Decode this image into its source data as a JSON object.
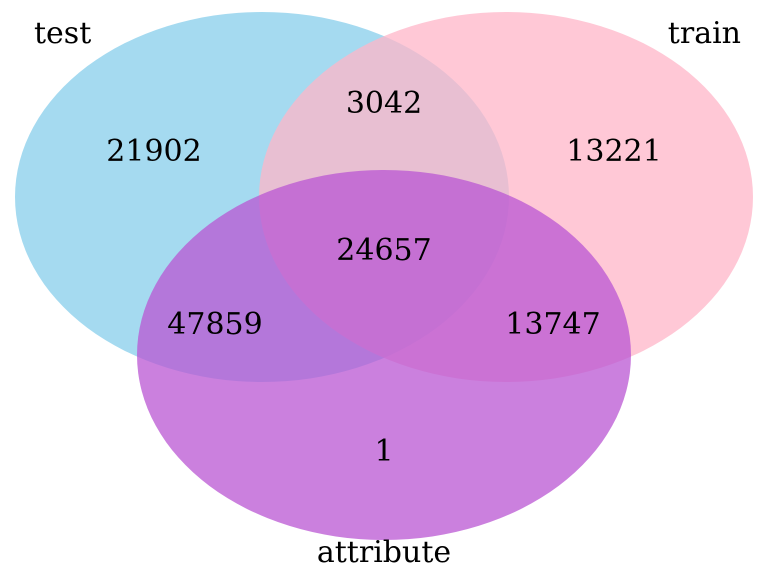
{
  "sets": {
    "test": {
      "label": "test",
      "color": "#87CEEB"
    },
    "train": {
      "label": "train",
      "color": "#FFB6C8"
    },
    "attribute": {
      "label": "attribute",
      "color": "#BA55D3"
    }
  },
  "regions": {
    "test_only": "21902",
    "train_only": "13221",
    "attribute_only": "1",
    "test_train": "3042",
    "test_attribute": "47859",
    "train_attribute": "13747",
    "all_three": "24657"
  }
}
